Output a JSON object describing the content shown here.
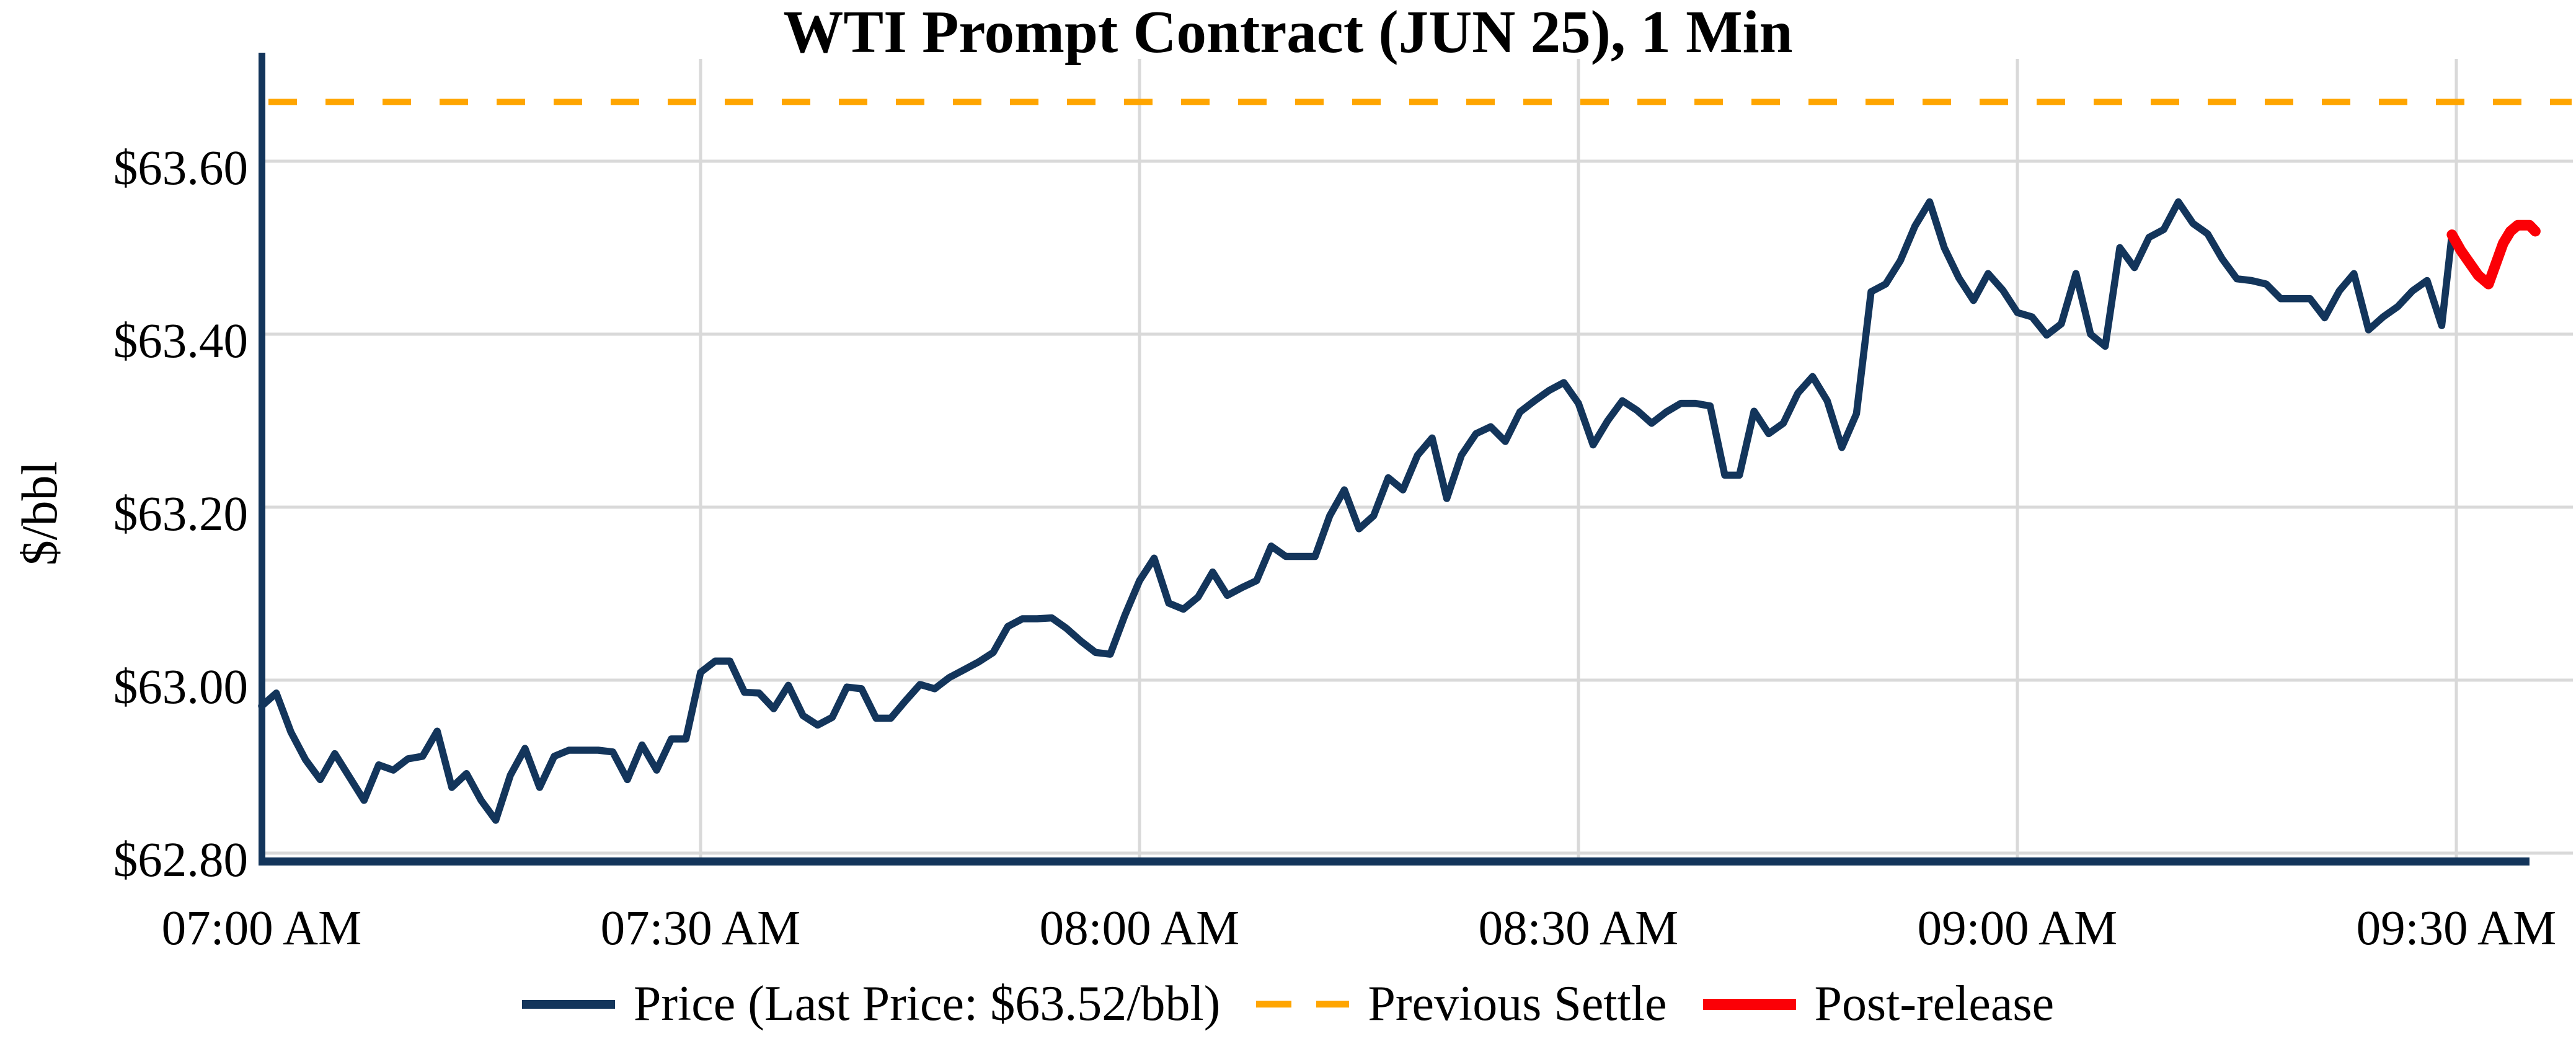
{
  "title": "WTI Prompt Contract (JUN 25), 1 Min",
  "y_axis": {
    "label": "$/bbl",
    "ticks": [
      {
        "label": "$62.80",
        "value": 62.8
      },
      {
        "label": "$63.00",
        "value": 63.0
      },
      {
        "label": "$63.20",
        "value": 63.2
      },
      {
        "label": "$63.40",
        "value": 63.4
      },
      {
        "label": "$63.60",
        "value": 63.6
      }
    ]
  },
  "x_axis": {
    "ticks": [
      {
        "label": "07:00 AM",
        "minute": 0
      },
      {
        "label": "07:30 AM",
        "minute": 30
      },
      {
        "label": "08:00 AM",
        "minute": 60
      },
      {
        "label": "08:30 AM",
        "minute": 90
      },
      {
        "label": "09:00 AM",
        "minute": 120
      },
      {
        "label": "09:30 AM",
        "minute": 150
      }
    ]
  },
  "legend": [
    {
      "key": "price",
      "label": "Price (Last Price: $63.52/bbl)",
      "swatch": "solid-navy"
    },
    {
      "key": "previous-settle",
      "label": "Previous Settle",
      "swatch": "dashed-orange"
    },
    {
      "key": "post-release",
      "label": "Post-release",
      "swatch": "solid-red"
    }
  ],
  "last_price": "$63.52/bbl",
  "colors": {
    "price": "#13355B",
    "previous_settle": "#FFA500",
    "post_release": "#FB0006",
    "gridline": "#D9D9D9",
    "axis": "#13355B",
    "text": "#000000"
  },
  "chart_data": {
    "type": "line",
    "title": "WTI Prompt Contract (JUN 25), 1 Min",
    "ylabel": "$/bbl",
    "xlabel": "",
    "x_unit": "minutes after 07:00 AM",
    "x_range_labels": [
      "07:00 AM",
      "09:35 AM"
    ],
    "ylim": [
      62.8,
      63.695
    ],
    "xlim_minutes": [
      0,
      158
    ],
    "grid": true,
    "legend_position": "bottom-center",
    "previous_settle_value": 63.67,
    "last_price_value": 63.52,
    "series": [
      {
        "name": "Price",
        "style": "solid",
        "color": "#13355B",
        "points": [
          [
            0,
            62.97
          ],
          [
            1,
            62.985
          ],
          [
            2,
            62.94
          ],
          [
            3,
            62.908
          ],
          [
            4,
            62.885
          ],
          [
            5,
            62.915
          ],
          [
            6,
            62.888
          ],
          [
            7,
            62.861
          ],
          [
            8,
            62.902
          ],
          [
            9,
            62.896
          ],
          [
            10,
            62.909
          ],
          [
            11,
            62.912
          ],
          [
            12,
            62.941
          ],
          [
            13,
            62.876
          ],
          [
            14,
            62.892
          ],
          [
            15,
            62.861
          ],
          [
            16,
            62.838
          ],
          [
            17,
            62.89
          ],
          [
            18,
            62.921
          ],
          [
            19,
            62.876
          ],
          [
            20,
            62.912
          ],
          [
            21,
            62.919
          ],
          [
            22,
            62.919
          ],
          [
            23,
            62.919
          ],
          [
            24,
            62.917
          ],
          [
            25,
            62.885
          ],
          [
            26,
            62.925
          ],
          [
            27,
            62.896
          ],
          [
            28,
            62.932
          ],
          [
            29,
            62.932
          ],
          [
            30,
            63.009
          ],
          [
            31,
            63.022
          ],
          [
            32,
            63.022
          ],
          [
            33,
            62.986
          ],
          [
            34,
            62.985
          ],
          [
            35,
            62.967
          ],
          [
            36,
            62.994
          ],
          [
            37,
            62.959
          ],
          [
            38,
            62.948
          ],
          [
            39,
            62.957
          ],
          [
            40,
            62.992
          ],
          [
            41,
            62.99
          ],
          [
            42,
            62.956
          ],
          [
            43,
            62.956
          ],
          [
            44,
            62.976
          ],
          [
            45,
            62.995
          ],
          [
            46,
            62.99
          ],
          [
            47,
            63.003
          ],
          [
            48,
            63.012
          ],
          [
            49,
            63.021
          ],
          [
            50,
            63.032
          ],
          [
            51,
            63.062
          ],
          [
            52,
            63.071
          ],
          [
            53,
            63.071
          ],
          [
            54,
            63.072
          ],
          [
            55,
            63.06
          ],
          [
            56,
            63.045
          ],
          [
            57,
            63.032
          ],
          [
            58,
            63.03
          ],
          [
            59,
            63.075
          ],
          [
            60,
            63.115
          ],
          [
            61,
            63.141
          ],
          [
            62,
            63.089
          ],
          [
            63,
            63.082
          ],
          [
            64,
            63.096
          ],
          [
            65,
            63.125
          ],
          [
            66,
            63.098
          ],
          [
            67,
            63.107
          ],
          [
            68,
            63.115
          ],
          [
            69,
            63.155
          ],
          [
            70,
            63.143
          ],
          [
            71,
            63.143
          ],
          [
            72,
            63.143
          ],
          [
            73,
            63.19
          ],
          [
            74,
            63.22
          ],
          [
            75,
            63.175
          ],
          [
            76,
            63.19
          ],
          [
            77,
            63.234
          ],
          [
            78,
            63.22
          ],
          [
            79,
            63.26
          ],
          [
            80,
            63.28
          ],
          [
            81,
            63.21
          ],
          [
            82,
            63.26
          ],
          [
            83,
            63.285
          ],
          [
            84,
            63.293
          ],
          [
            85,
            63.276
          ],
          [
            86,
            63.31
          ],
          [
            87,
            63.323
          ],
          [
            88,
            63.335
          ],
          [
            89,
            63.344
          ],
          [
            90,
            63.32
          ],
          [
            91,
            63.272
          ],
          [
            92,
            63.3
          ],
          [
            93,
            63.323
          ],
          [
            94,
            63.312
          ],
          [
            95,
            63.297
          ],
          [
            96,
            63.31
          ],
          [
            97,
            63.32
          ],
          [
            98,
            63.32
          ],
          [
            99,
            63.317
          ],
          [
            100,
            63.237
          ],
          [
            101,
            63.237
          ],
          [
            102,
            63.311
          ],
          [
            103,
            63.285
          ],
          [
            104,
            63.297
          ],
          [
            105,
            63.332
          ],
          [
            106,
            63.351
          ],
          [
            107,
            63.323
          ],
          [
            108,
            63.269
          ],
          [
            109,
            63.308
          ],
          [
            110,
            63.449
          ],
          [
            111,
            63.458
          ],
          [
            112,
            63.485
          ],
          [
            113,
            63.525
          ],
          [
            114,
            63.553
          ],
          [
            115,
            63.5
          ],
          [
            116,
            63.465
          ],
          [
            117,
            63.439
          ],
          [
            118,
            63.47
          ],
          [
            119,
            63.451
          ],
          [
            120,
            63.425
          ],
          [
            121,
            63.42
          ],
          [
            122,
            63.399
          ],
          [
            123,
            63.412
          ],
          [
            124,
            63.47
          ],
          [
            125,
            63.4
          ],
          [
            126,
            63.386
          ],
          [
            127,
            63.5
          ],
          [
            128,
            63.477
          ],
          [
            129,
            63.512
          ],
          [
            130,
            63.521
          ],
          [
            131,
            63.553
          ],
          [
            132,
            63.528
          ],
          [
            133,
            63.516
          ],
          [
            134,
            63.487
          ],
          [
            135,
            63.464
          ],
          [
            136,
            63.462
          ],
          [
            137,
            63.458
          ],
          [
            138,
            63.441
          ],
          [
            139,
            63.441
          ],
          [
            140,
            63.441
          ],
          [
            141,
            63.419
          ],
          [
            142,
            63.45
          ],
          [
            143,
            63.47
          ],
          [
            144,
            63.405
          ],
          [
            145,
            63.42
          ],
          [
            146,
            63.432
          ],
          [
            147,
            63.45
          ],
          [
            148,
            63.462
          ],
          [
            149,
            63.41
          ],
          [
            149.7,
            63.515
          ]
        ]
      },
      {
        "name": "Previous Settle",
        "style": "dashed",
        "color": "#FFA500",
        "value": 63.67
      },
      {
        "name": "Post-release",
        "style": "solid-thick",
        "color": "#FB0006",
        "points": [
          [
            149.7,
            63.515
          ],
          [
            150.3,
            63.497
          ],
          [
            151.5,
            63.468
          ],
          [
            152.2,
            63.458
          ],
          [
            153.2,
            63.505
          ],
          [
            153.7,
            63.519
          ],
          [
            154.2,
            63.526
          ],
          [
            155.0,
            63.526
          ],
          [
            155.4,
            63.519
          ]
        ]
      }
    ]
  }
}
